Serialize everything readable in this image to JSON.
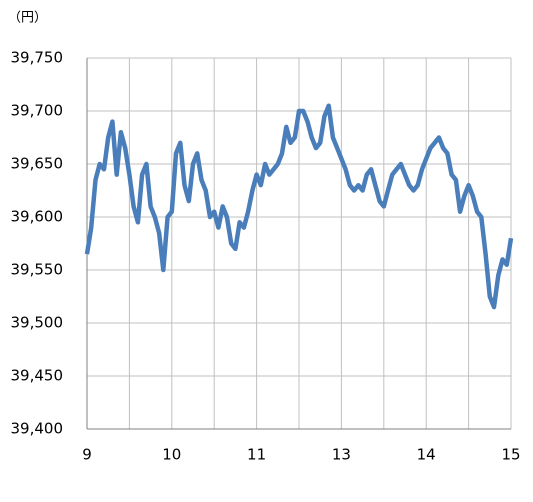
{
  "chart_data": {
    "type": "line",
    "y_label": "（円）",
    "categories": [
      "9",
      null,
      null,
      null,
      null,
      null,
      null,
      null,
      null,
      null,
      null,
      null,
      null,
      null,
      null,
      null,
      null,
      null,
      null,
      null,
      "10",
      null,
      null,
      null,
      null,
      null,
      null,
      null,
      null,
      null,
      null,
      null,
      null,
      null,
      null,
      null,
      null,
      null,
      null,
      null,
      "11",
      null,
      null,
      null,
      null,
      null,
      null,
      null,
      null,
      null,
      null,
      null,
      null,
      null,
      null,
      null,
      null,
      null,
      null,
      null,
      "13",
      null,
      null,
      null,
      null,
      null,
      null,
      null,
      null,
      null,
      null,
      null,
      null,
      null,
      null,
      null,
      null,
      null,
      null,
      null,
      "14",
      null,
      null,
      null,
      null,
      null,
      null,
      null,
      null,
      null,
      null,
      null,
      null,
      null,
      null,
      null,
      null,
      null,
      null,
      null,
      "15"
    ],
    "series": [
      {
        "color": "#4a7ebb",
        "values": [
          39565,
          39590,
          39635,
          39650,
          39645,
          39675,
          39690,
          39640,
          39680,
          39665,
          39640,
          39610,
          39595,
          39640,
          39650,
          39610,
          39600,
          39585,
          39550,
          39600,
          39605,
          39660,
          39670,
          39630,
          39615,
          39650,
          39660,
          39635,
          39625,
          39600,
          39605,
          39590,
          39610,
          39600,
          39575,
          39570,
          39595,
          39590,
          39605,
          39625,
          39640,
          39630,
          39650,
          39640,
          39645,
          39650,
          39660,
          39685,
          39670,
          39675,
          39700,
          39700,
          39690,
          39675,
          39665,
          39670,
          39695,
          39705,
          39675,
          39665,
          39655,
          39645,
          39630,
          39625,
          39630,
          39625,
          39640,
          39645,
          39630,
          39615,
          39610,
          39625,
          39640,
          39645,
          39650,
          39640,
          39630,
          39625,
          39630,
          39645,
          39655,
          39665,
          39670,
          39675,
          39665,
          39660,
          39640,
          39635,
          39605,
          39620,
          39630,
          39620,
          39605,
          39600,
          39565,
          39525,
          39515,
          39545,
          39560,
          39555,
          39580
        ]
      }
    ],
    "ylim": [
      39400,
      39750
    ],
    "yticks": [
      {
        "value": 39400,
        "label": "39,400"
      },
      {
        "value": 39450,
        "label": "39,450"
      },
      {
        "value": 39500,
        "label": "39,500"
      },
      {
        "value": 39550,
        "label": "39,550"
      },
      {
        "value": 39600,
        "label": "39,600"
      },
      {
        "value": 39650,
        "label": "39,650"
      },
      {
        "value": 39700,
        "label": "39,700"
      },
      {
        "value": 39750,
        "label": "39,750"
      }
    ],
    "grid": true
  }
}
